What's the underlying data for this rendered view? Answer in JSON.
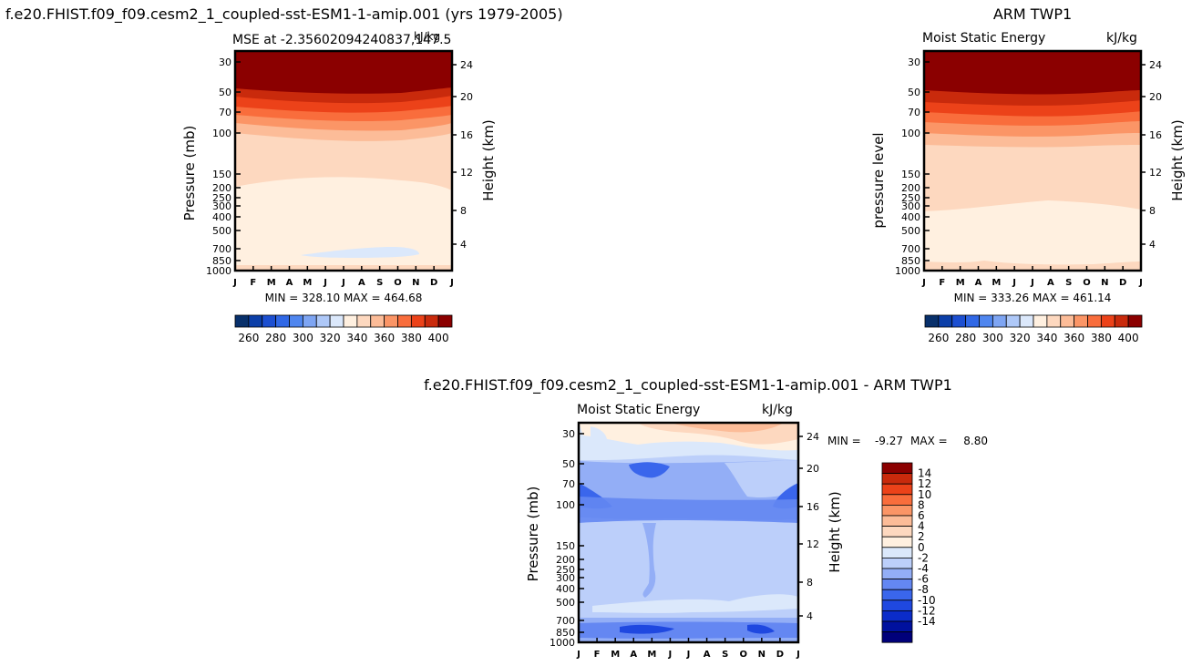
{
  "figure_title": "f.e20.FHIST.f09_f09.cesm2_1_coupled-sst-ESM1-1-amip.001 (yrs 1979-2005)",
  "colors": {
    "mse_levels": [
      "#08306b",
      "#0c3fa8",
      "#1c4fd1",
      "#3068e6",
      "#4f86ef",
      "#7ea5f3",
      "#aec8f8",
      "#dbe8fb",
      "#fff0e0",
      "#fdd8bf",
      "#fcbc98",
      "#fb9566",
      "#f96d3c",
      "#ec4219",
      "#c92a0c",
      "#8b0000"
    ],
    "diff_levels": [
      "#00007a",
      "#00119e",
      "#0b2cc9",
      "#1f48e0",
      "#3a66ec",
      "#6487f2",
      "#93aef6",
      "#bccffa",
      "#dbe8fb",
      "#fff0e0",
      "#fdd8bf",
      "#fcbc98",
      "#fb9566",
      "#f96d3c",
      "#ec4219",
      "#c92a0c",
      "#8b0000"
    ]
  },
  "chart_data": [
    {
      "type": "heatmap",
      "title": "MSE at -2.35602094240837,147.5",
      "unit": "kJ/kg",
      "ylabel": "Pressure (mb)",
      "y2label": "Height (km)",
      "months": [
        "J",
        "F",
        "M",
        "A",
        "M",
        "J",
        "J",
        "A",
        "S",
        "O",
        "N",
        "D",
        "J"
      ],
      "pressure_ticks": [
        "30",
        "50",
        "70",
        "100",
        "150",
        "200",
        "250",
        "300",
        "400",
        "500",
        "700",
        "850",
        "1000"
      ],
      "height_ticks": [
        "24",
        "20",
        "16",
        "12",
        "8",
        "4"
      ],
      "stats": "MIN = 328.10 MAX = 464.68",
      "min": 328.1,
      "max": 464.68,
      "colorbar_ticks": [
        "260",
        "280",
        "300",
        "320",
        "340",
        "360",
        "380",
        "400"
      ]
    },
    {
      "type": "heatmap",
      "title": "ARM TWP1",
      "subtitle": "Moist Static Energy",
      "unit": "kJ/kg",
      "ylabel": "pressure level",
      "y2label": "Height (km)",
      "months": [
        "J",
        "F",
        "M",
        "A",
        "M",
        "J",
        "J",
        "A",
        "S",
        "O",
        "N",
        "D",
        "J"
      ],
      "pressure_ticks": [
        "30",
        "50",
        "70",
        "100",
        "150",
        "200",
        "250",
        "300",
        "400",
        "500",
        "700",
        "850",
        "1000"
      ],
      "height_ticks": [
        "24",
        "20",
        "16",
        "12",
        "8",
        "4"
      ],
      "stats": "MIN = 333.26 MAX = 461.14",
      "min": 333.26,
      "max": 461.14,
      "colorbar_ticks": [
        "260",
        "280",
        "300",
        "320",
        "340",
        "360",
        "380",
        "400"
      ]
    },
    {
      "type": "heatmap",
      "title": "f.e20.FHIST.f09_f09.cesm2_1_coupled-sst-ESM1-1-amip.001 - ARM TWP1",
      "subtitle": "Moist Static Energy",
      "unit": "kJ/kg",
      "ylabel": "Pressure (mb)",
      "y2label": "Height (km)",
      "months": [
        "J",
        "F",
        "M",
        "A",
        "M",
        "J",
        "J",
        "A",
        "S",
        "O",
        "N",
        "D",
        "J"
      ],
      "pressure_ticks": [
        "30",
        "50",
        "70",
        "100",
        "150",
        "200",
        "250",
        "300",
        "400",
        "500",
        "700",
        "850",
        "1000"
      ],
      "height_ticks": [
        "24",
        "20",
        "16",
        "12",
        "8",
        "4"
      ],
      "stats_min_label": "MIN =",
      "stats_min": "-9.27",
      "stats_max_label": "MAX =",
      "stats_max": "8.80",
      "colorbar_ticks": [
        "14",
        "12",
        "10",
        "8",
        "6",
        "4",
        "2",
        "0",
        "-2",
        "-4",
        "-6",
        "-8",
        "-10",
        "-12",
        "-14"
      ]
    }
  ]
}
